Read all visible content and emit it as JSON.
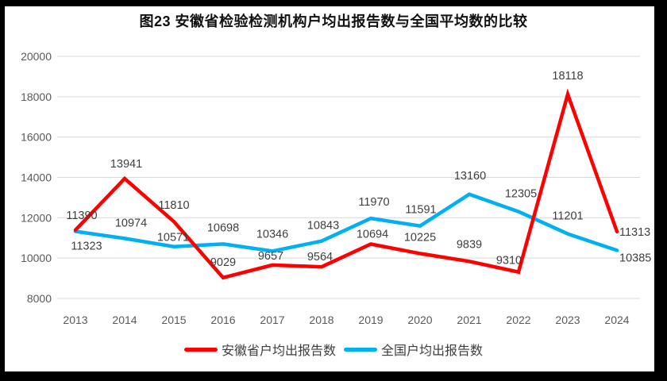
{
  "chart_data": {
    "type": "line",
    "title": "图23 安徽省检验检测机构户均出报告数与全国平均数的比较",
    "categories": [
      "2013",
      "2014",
      "2015",
      "2016",
      "2017",
      "2018",
      "2019",
      "2020",
      "2021",
      "2022",
      "2023",
      "2024"
    ],
    "series": [
      {
        "name": "安徽省户均出报告数",
        "color": "#FF0000",
        "values": [
          11390,
          13941,
          11810,
          9029,
          9657,
          9564,
          10694,
          10225,
          9839,
          9310,
          18118,
          11313
        ]
      },
      {
        "name": "全国户均出报告数",
        "color": "#00B0F0",
        "values": [
          11323,
          10974,
          10571,
          10698,
          10346,
          10843,
          11970,
          11591,
          13160,
          12305,
          11201,
          10385
        ]
      }
    ],
    "ylim": [
      8000,
      20000
    ],
    "yticks": [
      20000,
      18000,
      16000,
      14000,
      12000,
      10000,
      8000
    ],
    "grid": true,
    "data_labels": true,
    "legend_position": "bottom",
    "colors": {
      "gridline": "#D9D9D9",
      "tick_label": "#595959",
      "data_label": "#3f3f3f"
    }
  }
}
